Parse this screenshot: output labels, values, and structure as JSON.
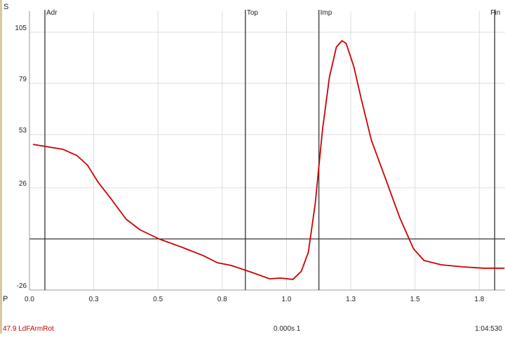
{
  "chart_data": {
    "type": "line",
    "x": [
      0.014,
      0.06,
      0.13,
      0.185,
      0.226,
      0.267,
      0.32,
      0.376,
      0.43,
      0.504,
      0.594,
      0.676,
      0.731,
      0.785,
      0.867,
      0.935,
      0.976,
      1.025,
      1.058,
      1.085,
      1.112,
      1.14,
      1.167,
      1.194,
      1.216,
      1.232,
      1.262,
      1.29,
      1.33,
      1.38,
      1.44,
      1.494,
      1.535,
      1.603,
      1.685,
      1.767,
      1.848
    ],
    "series": [
      {
        "name": "47.9 LdFArmRot",
        "color": "#cc0000",
        "values": [
          48.0,
          47.0,
          45.5,
          42.3,
          37.4,
          28.8,
          19.9,
          10.0,
          4.6,
          0.0,
          -4.3,
          -8.5,
          -12.1,
          -13.5,
          -17.1,
          -20.3,
          -19.9,
          -20.6,
          -16.4,
          -6.8,
          18.1,
          55.5,
          82.2,
          97.5,
          100.7,
          99.3,
          87.5,
          71.5,
          50.2,
          32.4,
          11.0,
          -5.0,
          -11.0,
          -13.2,
          -14.2,
          -14.9,
          -14.9
        ]
      }
    ],
    "xlim": [
      0,
      1.85
    ],
    "xticks": [
      {
        "value": 0,
        "label": "0.0"
      },
      {
        "value": 0.25,
        "label": "0.3"
      },
      {
        "value": 0.5,
        "label": "0.5"
      },
      {
        "value": 0.75,
        "label": "0.8"
      },
      {
        "value": 1.0,
        "label": "1.0"
      },
      {
        "value": 1.25,
        "label": "1.3"
      },
      {
        "value": 1.5,
        "label": "1.5"
      },
      {
        "value": 1.75,
        "label": "1.8"
      }
    ],
    "ylim": [
      -26,
      105
    ],
    "yticks": [
      -26,
      26,
      53,
      79,
      105
    ],
    "grid": true,
    "events": [
      {
        "label": "Adr",
        "x": 0.06
      },
      {
        "label": "Top",
        "x": 0.84
      },
      {
        "label": "Imp",
        "x": 1.126
      },
      {
        "label": "Fin",
        "x": 1.81
      }
    ],
    "y_axis_label": "S",
    "x_axis_label": "P",
    "cursor_readout": "0.000s  1",
    "clock": "1:04:530"
  }
}
